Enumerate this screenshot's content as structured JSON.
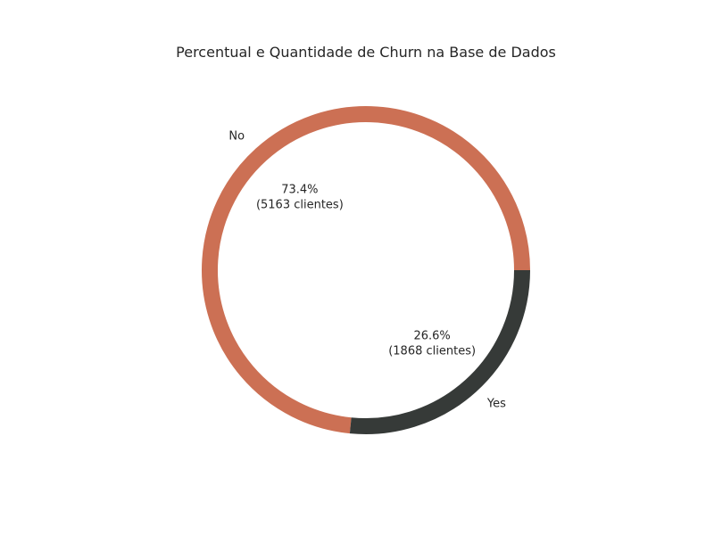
{
  "chart_data": {
    "type": "pie",
    "title": "Percentual e Quantidade de Churn na Base de Dados",
    "categories": [
      "No",
      "Yes"
    ],
    "values": [
      5163,
      1868
    ],
    "percent_labels": [
      "73.4%",
      "26.6%"
    ],
    "count_labels": [
      "(5163 clientes)",
      "(1868 clientes)"
    ],
    "colors": [
      "#cc7054",
      "#363a38"
    ],
    "donut": true,
    "start_angle_deg": 0,
    "direction": "counterclockwise"
  }
}
